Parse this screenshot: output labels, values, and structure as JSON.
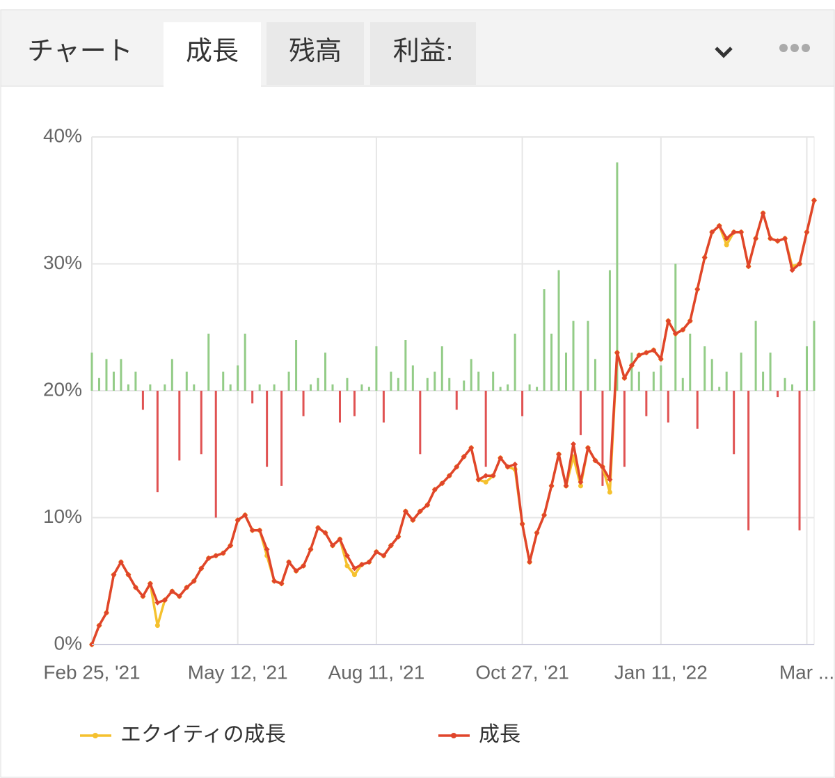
{
  "header": {
    "tabs": [
      "チャート",
      "成長",
      "残高",
      "利益:"
    ]
  },
  "chart_data": {
    "type": "line",
    "categories": [
      "Feb 25, '21",
      null,
      null,
      null,
      null,
      null,
      null,
      null,
      null,
      null,
      null,
      null,
      null,
      null,
      null,
      null,
      null,
      null,
      null,
      null,
      "May 12, '21",
      null,
      null,
      null,
      null,
      null,
      null,
      null,
      null,
      null,
      null,
      null,
      null,
      null,
      null,
      null,
      null,
      null,
      null,
      "Aug 11, '21",
      null,
      null,
      null,
      null,
      null,
      null,
      null,
      null,
      null,
      null,
      null,
      null,
      null,
      null,
      null,
      null,
      null,
      null,
      null,
      "Oct 27, '21",
      null,
      null,
      null,
      null,
      null,
      null,
      null,
      null,
      null,
      null,
      null,
      null,
      null,
      null,
      null,
      null,
      null,
      null,
      "Jan 11, '22",
      null,
      null,
      null,
      null,
      null,
      null,
      null,
      null,
      null,
      null,
      null,
      null,
      null,
      null,
      null,
      null,
      null,
      null,
      null,
      "Mar ...",
      null
    ],
    "ylim": [
      0,
      40
    ],
    "yticks": [
      {
        "value": 0,
        "label": "0%"
      },
      {
        "value": 10,
        "label": "10%"
      },
      {
        "value": 20,
        "label": "20%"
      },
      {
        "value": 30,
        "label": "30%"
      },
      {
        "value": 40,
        "label": "40%"
      }
    ],
    "grid": true,
    "bars": {
      "base": 20,
      "up_color": "#93cc87",
      "down_color": "#e05252",
      "values": [
        3,
        1,
        2.5,
        1.5,
        2.5,
        0.5,
        1.5,
        -1.5,
        0.5,
        -8,
        0.5,
        2.5,
        -5.5,
        1.5,
        0.5,
        -5,
        4.5,
        -10,
        1.5,
        0.5,
        2,
        4.5,
        -1,
        0.5,
        -6,
        0.5,
        -7.5,
        1.5,
        4,
        -2,
        0.5,
        1,
        3,
        0.5,
        -2.5,
        1,
        -2,
        0.5,
        0.3,
        3.5,
        -2.5,
        1.5,
        1,
        4,
        2,
        -5,
        1,
        1.5,
        3.5,
        1,
        -1.5,
        0.8,
        2.5,
        1.5,
        -6,
        1.5,
        0.3,
        0.5,
        4.5,
        -2,
        0.5,
        0.3,
        8,
        4.5,
        9.5,
        3,
        5.5,
        -3.5,
        5.5,
        2.5,
        -7.5,
        9.5,
        18,
        -6,
        3,
        1.5,
        -2,
        1.5,
        2,
        -2.5,
        10,
        1,
        4.5,
        -3,
        3.5,
        2.5,
        0.3,
        1.5,
        -5,
        3,
        -11,
        5.5,
        1.5,
        3,
        -0.5,
        1,
        0.5,
        -11,
        3.5,
        5.5
      ]
    },
    "series": [
      {
        "name": "エクイティの成長",
        "color": "#f5c12e",
        "marker": "circle",
        "values": [
          0,
          1.5,
          2.5,
          5.5,
          6.5,
          5.5,
          4.5,
          3.8,
          4.8,
          1.5,
          3.5,
          4.2,
          3.8,
          4.5,
          5.0,
          6.0,
          6.8,
          7.0,
          7.2,
          7.8,
          9.8,
          10.2,
          9.0,
          9.0,
          7.0,
          5.0,
          4.8,
          6.5,
          5.8,
          6.2,
          7.5,
          9.2,
          8.8,
          7.8,
          8.3,
          6.2,
          5.5,
          6.3,
          6.5,
          7.3,
          7.0,
          7.8,
          8.5,
          10.5,
          9.8,
          10.5,
          11.0,
          12.2,
          12.7,
          13.3,
          14.0,
          14.8,
          15.5,
          13.0,
          12.8,
          13.3,
          14.7,
          14.0,
          13.8,
          9.5,
          6.5,
          8.8,
          10.2,
          12.5,
          15.0,
          12.5,
          14.8,
          12.5,
          15.5,
          14.5,
          14.0,
          12.0,
          23.0,
          21.0,
          22.0,
          22.8,
          23.0,
          23.2,
          22.5,
          25.5,
          24.5,
          24.8,
          25.5,
          28.0,
          30.5,
          32.5,
          33.0,
          31.5,
          32.5,
          32.5,
          29.8,
          32.0,
          34.0,
          32.0,
          31.8,
          32.0,
          29.8,
          30.0,
          32.5,
          35.0
        ]
      },
      {
        "name": "成長",
        "color": "#e0452b",
        "marker": "diamond",
        "values": [
          0,
          1.5,
          2.5,
          5.5,
          6.5,
          5.5,
          4.5,
          3.8,
          4.8,
          3.3,
          3.5,
          4.2,
          3.8,
          4.5,
          5.0,
          6.0,
          6.8,
          7.0,
          7.2,
          7.8,
          9.8,
          10.2,
          9.0,
          9.0,
          7.5,
          5.0,
          4.8,
          6.5,
          5.8,
          6.2,
          7.5,
          9.2,
          8.8,
          7.8,
          8.3,
          7.0,
          6.0,
          6.3,
          6.5,
          7.3,
          7.0,
          7.8,
          8.5,
          10.5,
          9.8,
          10.5,
          11.0,
          12.2,
          12.7,
          13.3,
          14.0,
          14.8,
          15.5,
          13.0,
          13.3,
          13.3,
          14.7,
          14.0,
          14.2,
          9.5,
          6.5,
          8.8,
          10.2,
          12.5,
          15.0,
          12.5,
          15.8,
          12.8,
          15.5,
          14.5,
          14.0,
          13.0,
          23.0,
          21.0,
          22.0,
          22.8,
          23.0,
          23.2,
          22.5,
          25.5,
          24.5,
          24.8,
          25.5,
          28.0,
          30.5,
          32.5,
          33.0,
          32.0,
          32.5,
          32.5,
          29.8,
          32.0,
          34.0,
          32.0,
          31.8,
          32.0,
          29.5,
          30.0,
          32.5,
          35.0
        ]
      }
    ]
  }
}
